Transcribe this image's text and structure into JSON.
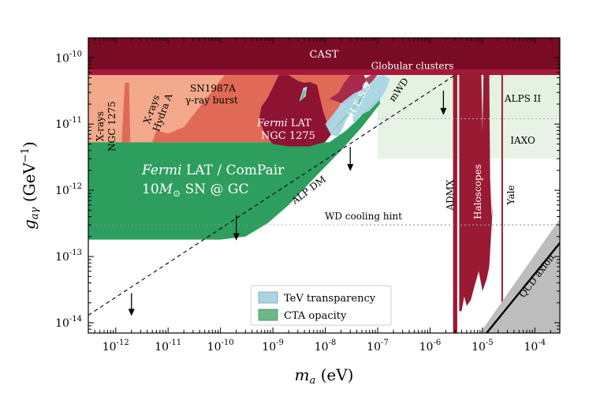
{
  "chart_data": {
    "type": "exclusion-plot",
    "xlabel": "m_a (eV)",
    "ylabel": "g_aγ (GeV^-1)",
    "xscale": "log",
    "yscale": "log",
    "xlim": [
      3e-13,
      0.0003
    ],
    "ylim": [
      7e-15,
      2e-10
    ],
    "x_ticks": [
      {
        "value": 1e-12,
        "base": "10",
        "exp": "-12"
      },
      {
        "value": 1e-11,
        "base": "10",
        "exp": "-11"
      },
      {
        "value": 1e-10,
        "base": "10",
        "exp": "-10"
      },
      {
        "value": 1e-09,
        "base": "10",
        "exp": "-9"
      },
      {
        "value": 1e-08,
        "base": "10",
        "exp": "-8"
      },
      {
        "value": 1e-07,
        "base": "10",
        "exp": "-7"
      },
      {
        "value": 1e-06,
        "base": "10",
        "exp": "-6"
      },
      {
        "value": 1e-05,
        "base": "10",
        "exp": "-5"
      },
      {
        "value": 0.0001,
        "base": "10",
        "exp": "-4"
      }
    ],
    "y_ticks": [
      {
        "value": 1e-14,
        "base": "10",
        "exp": "-14"
      },
      {
        "value": 1e-13,
        "base": "10",
        "exp": "-13"
      },
      {
        "value": 1e-12,
        "base": "10",
        "exp": "-12"
      },
      {
        "value": 1e-11,
        "base": "10",
        "exp": "-11"
      },
      {
        "value": 1e-10,
        "base": "10",
        "exp": "-10"
      }
    ],
    "colors": {
      "cast": "#7a0b25",
      "globular": "#a8183a",
      "sn1987a": "#e06a55",
      "xrays": "#f2a98c",
      "fermi_ngc1275": "#8e1232",
      "hess": "#a8294a",
      "fermi_compair": "#2e9e5f",
      "tev_transparency": "#a9d4e2",
      "cta_opacity": "#6cb88b",
      "haloscopes": "#9a1a34",
      "light_green": "#e3f2e1",
      "qcd_band": "#bdbdbd"
    },
    "regions": [
      {
        "name": "CAST",
        "label": "CAST",
        "x_range": [
          3e-13,
          0.0003
        ],
        "g_range": [
          6.6e-11,
          2e-10
        ]
      },
      {
        "name": "Globular clusters",
        "label": "Globular clusters",
        "x_range": [
          3e-13,
          0.0003
        ],
        "g_range": [
          5.5e-11,
          6.6e-11
        ]
      },
      {
        "name": "SN1987A gamma-ray burst",
        "label_lines": [
          "SN1987A",
          "γ-ray burst"
        ],
        "x_range": [
          3e-13,
          4e-08
        ],
        "g_range": [
          5.3e-12,
          5.5e-11
        ]
      },
      {
        "name": "X-rays NGC 1275",
        "label_lines": [
          "X-rays",
          "NGC 1275"
        ],
        "x_range": [
          3e-13,
          1e-11
        ],
        "g_range": [
          5.3e-12,
          5.5e-11
        ]
      },
      {
        "name": "X-rays Hydra A",
        "label_lines": [
          "X-rays",
          "Hydra A"
        ],
        "x_range": [
          1e-11,
          1e-10
        ],
        "g_range": [
          5.3e-12,
          5.5e-11
        ]
      },
      {
        "name": "Fermi LAT NGC 1275",
        "label_lines": [
          "Fermi LAT",
          "NGC 1275"
        ],
        "x_range": [
          6e-10,
          1.2e-08
        ],
        "g_range": [
          4.5e-12,
          5e-11
        ]
      },
      {
        "name": "H.E.S.S.",
        "label": "H.E.S.S.",
        "x_range": [
          1.4e-08,
          4e-08
        ],
        "g_range": [
          2e-11,
          5.5e-11
        ]
      },
      {
        "name": "Fermi LAT / ComPair 10 M_sun SN @ GC",
        "label_lines": [
          "Fermi LAT / ComPair",
          "10M⊙  SN @ GC"
        ],
        "x_range": [
          3e-13,
          1e-07
        ],
        "g_range": [
          1.8e-13,
          5.3e-12
        ],
        "projected": true
      },
      {
        "name": "Haloscopes",
        "label": "Haloscopes",
        "x_range": [
          2.7e-06,
          2.5e-05
        ],
        "g_range": [
          7e-15,
          6e-11
        ]
      },
      {
        "name": "ADMX",
        "label": "ADMX",
        "x_range": [
          2.7e-06,
          3.3e-06
        ],
        "g_range": [
          7e-15,
          6e-11
        ]
      },
      {
        "name": "Yale",
        "label": "Yale",
        "x_range": [
          2.3e-05,
          2.4e-05
        ],
        "g_range": [
          1.5e-14,
          6e-11
        ]
      },
      {
        "name": "ALPS II",
        "label": "ALPS II",
        "x_range": [
          1e-07,
          0.0003
        ],
        "g_range": [
          1.2e-11,
          5.5e-11
        ],
        "projected": true
      },
      {
        "name": "IAXO",
        "label": "IAXO",
        "x_range": [
          1e-07,
          0.0003
        ],
        "g_range": [
          3e-12,
          1.2e-11
        ],
        "projected": true
      },
      {
        "name": "mWD",
        "label": "mWD",
        "x_range": [
          5e-08,
          1.1e-07
        ],
        "g_range": [
          2.3e-11,
          6e-11
        ]
      }
    ],
    "lines": [
      {
        "name": "ALP DM",
        "label": "ALP DM",
        "style": "dashed",
        "points": [
          [
            3e-13,
            1.3e-14
          ],
          [
            3e-06,
            5.5e-11
          ]
        ]
      },
      {
        "name": "WD cooling hint",
        "label": "WD cooling hint",
        "style": "dotted",
        "g": 3e-13
      },
      {
        "name": "ALPS II line",
        "style": "dotted",
        "g": 1.2e-11
      },
      {
        "name": "QCD axion",
        "label": "QCD axion",
        "style": "solid",
        "points": [
          [
            1.2e-05,
            7e-15
          ],
          [
            0.0003,
            1.6e-13
          ]
        ]
      }
    ],
    "arrows": [
      {
        "x": 2e-12,
        "g_from": 2.8e-14,
        "g_to": 1.3e-14
      },
      {
        "x": 2e-10,
        "g_from": 4.2e-13,
        "g_to": 1.8e-13
      },
      {
        "x": 3e-08,
        "g_from": 4.5e-12,
        "g_to": 2e-12
      },
      {
        "x": 1.8e-06,
        "g_from": 3.2e-11,
        "g_to": 1.4e-11
      }
    ],
    "legend": {
      "position": "bottom-center",
      "entries": [
        {
          "label": "TeV transparency",
          "color_key": "tev_transparency"
        },
        {
          "label": "CTA opacity",
          "color_key": "cta_opacity"
        }
      ]
    },
    "annotations": {
      "sn_scale": "10",
      "sn_sub": "⊙",
      "sn_rest": " SN @ GC",
      "qcd": "QCD axion"
    }
  },
  "axis_labels": {
    "x_main": "m",
    "x_sub": "a",
    "x_unit": " (eV)",
    "y_main": "g",
    "y_sub": "aγ",
    "y_unit": " (GeV",
    "y_unit_exp": "−1",
    "y_unit_close": ")"
  }
}
